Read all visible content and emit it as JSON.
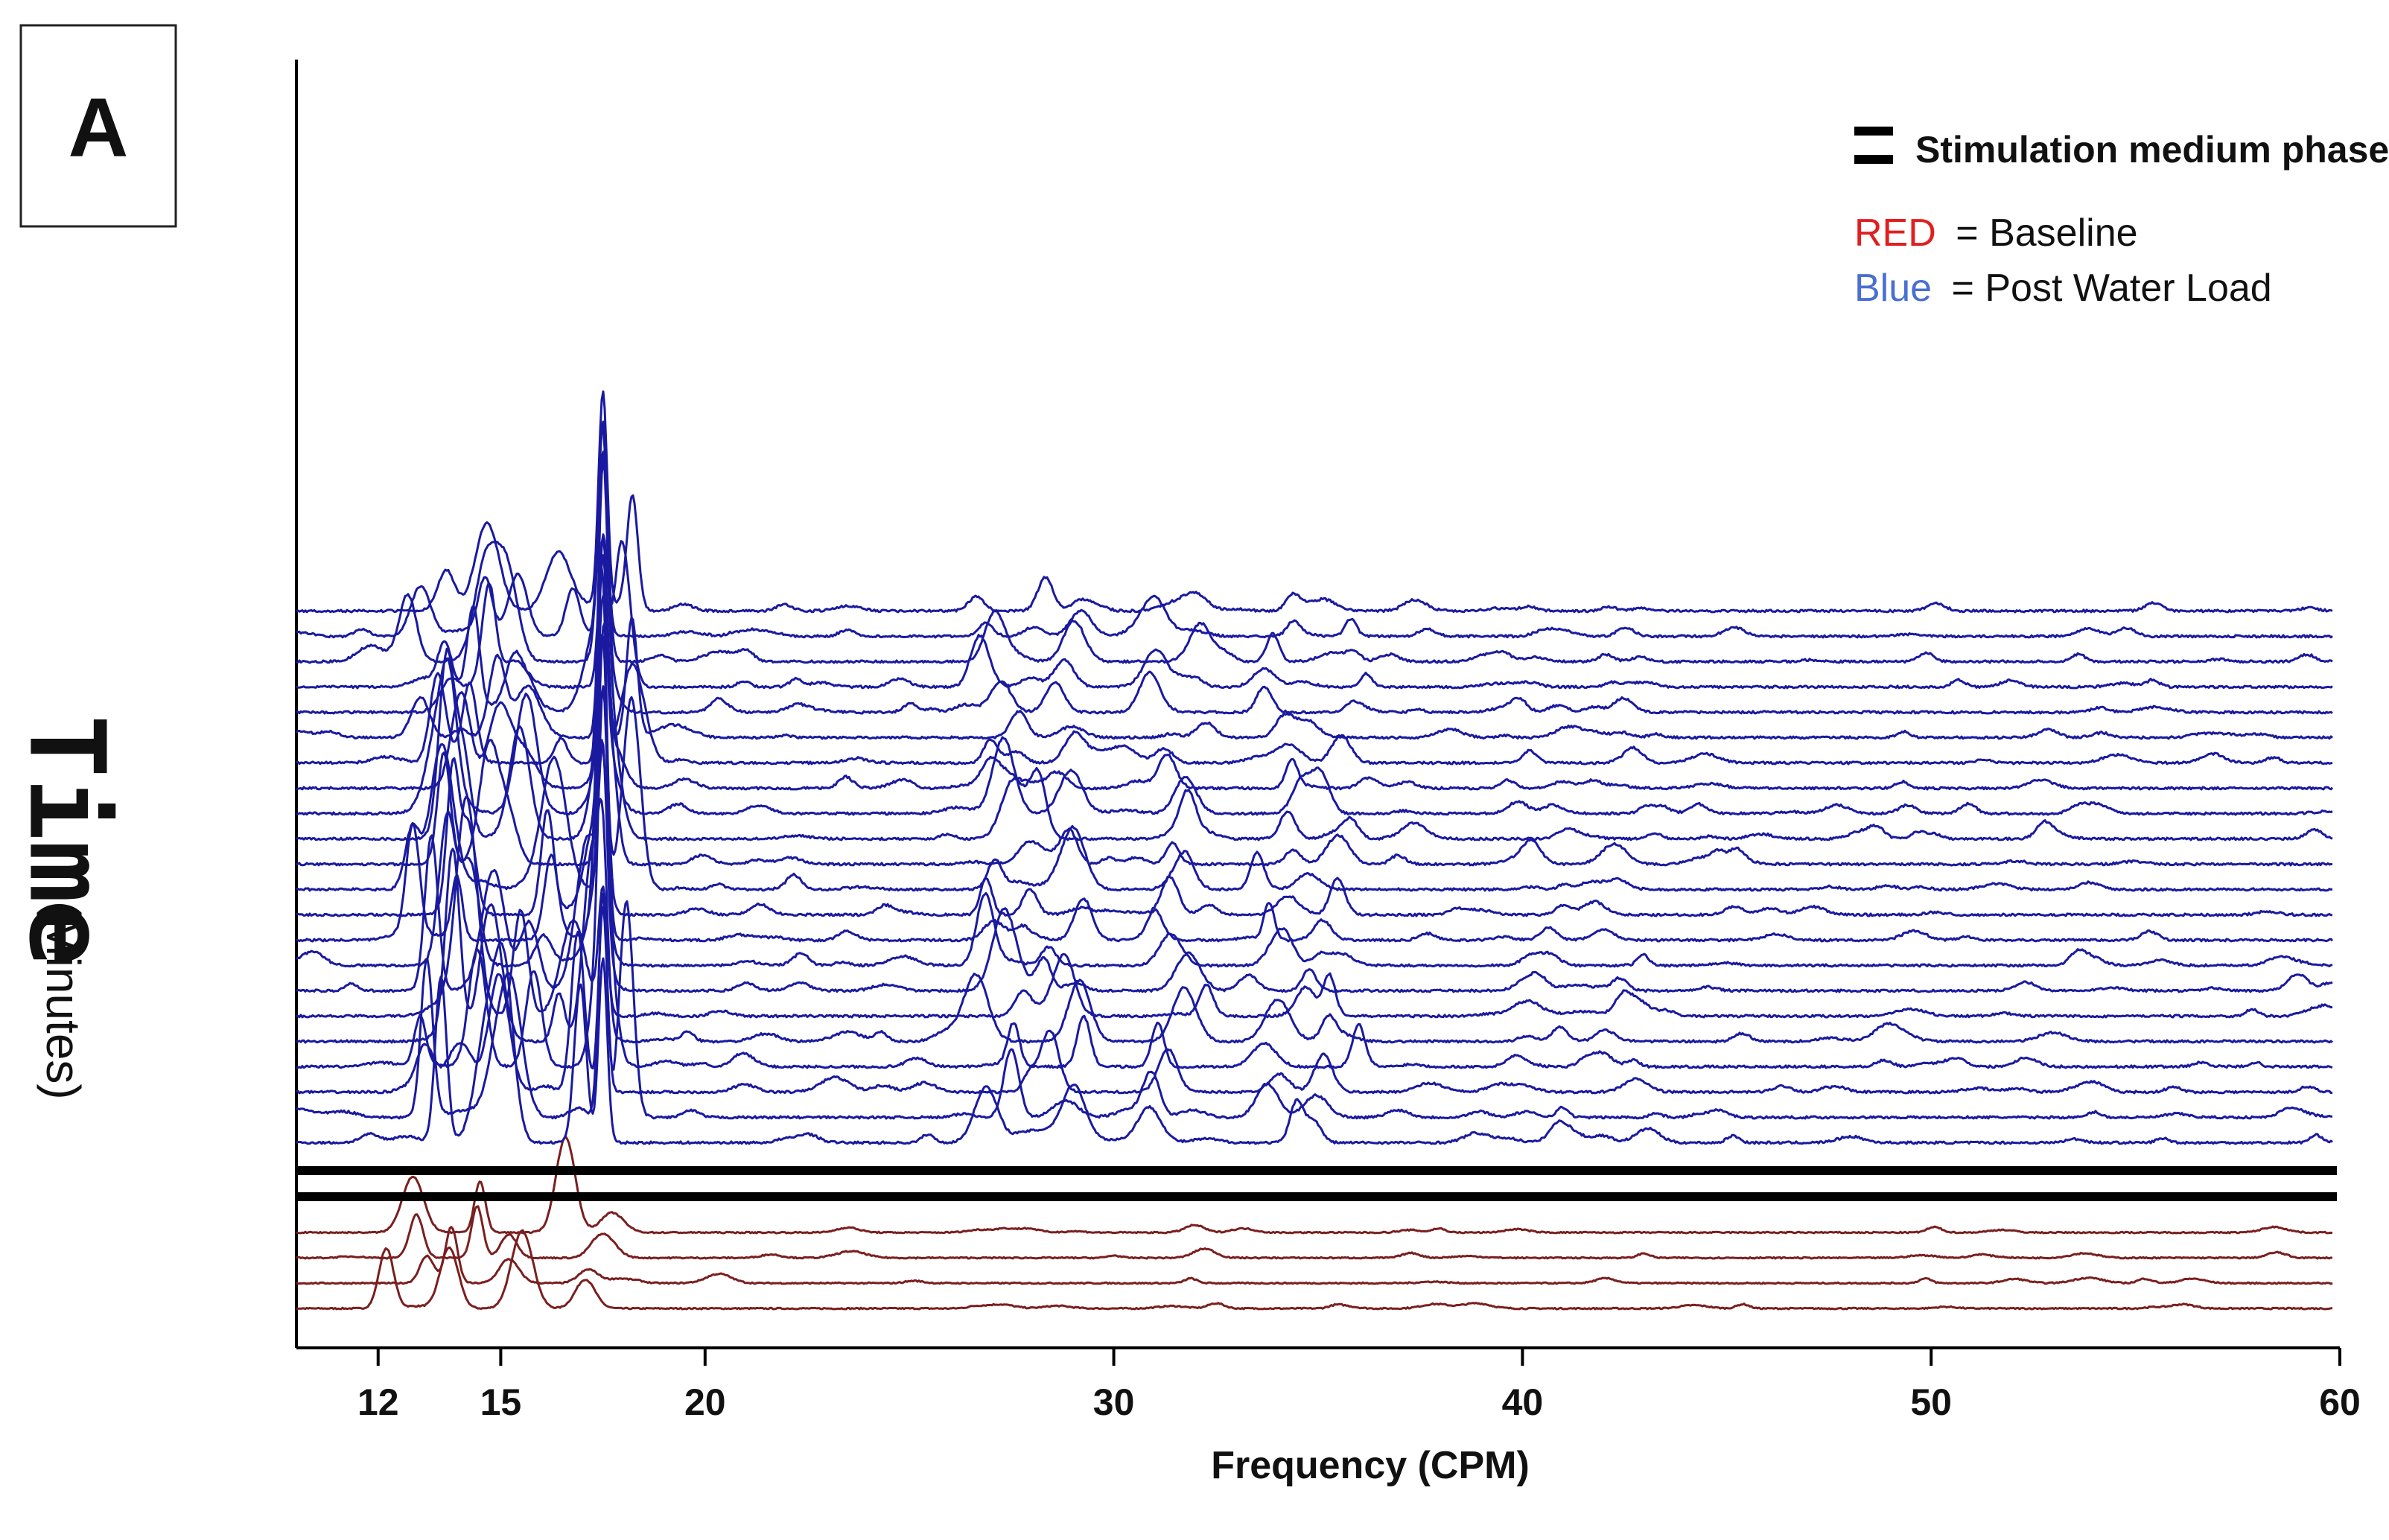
{
  "panel_label": "A",
  "chart_data": {
    "type": "line",
    "xlabel": "Frequency (CPM)",
    "ylabel_main": "Time",
    "ylabel_sub": "(Minutes)",
    "xlim": [
      10,
      60
    ],
    "xticks": [
      12,
      15,
      20,
      30,
      40,
      50,
      60
    ],
    "legend_position": "top-right",
    "legend": {
      "phase_label": "Stimulation medium phase",
      "red_word": "RED",
      "red_rest": "= Baseline",
      "blue_word": "Blue",
      "blue_rest": "= Post Water Load"
    },
    "colors": {
      "baseline": "#7a1f1f",
      "post_water_load": "#1a1aa0",
      "phase": "#000000",
      "red_word": "#e02020",
      "blue_word": "#4a6fd0"
    },
    "baseline_traces": 4,
    "post_water_load_traces": 22,
    "stimulation_lines": 2,
    "dominant_peaks_post_water_load": [
      {
        "freq": 13.5,
        "amp": 0.9
      },
      {
        "freq": 14.3,
        "amp": 0.75
      },
      {
        "freq": 15.7,
        "amp": 0.6
      },
      {
        "freq": 17.5,
        "amp": 1.0
      },
      {
        "freq": 27.2,
        "amp": 0.35
      },
      {
        "freq": 28.7,
        "amp": 0.3
      },
      {
        "freq": 31.5,
        "amp": 0.25
      },
      {
        "freq": 34.0,
        "amp": 0.2
      },
      {
        "freq": 35.5,
        "amp": 0.2
      },
      {
        "freq": 40.5,
        "amp": 0.08
      },
      {
        "freq": 42.5,
        "amp": 0.08
      }
    ],
    "dominant_peaks_baseline": [
      {
        "freq": 13.0,
        "amp": 0.5
      },
      {
        "freq": 14.2,
        "amp": 0.6
      },
      {
        "freq": 15.8,
        "amp": 0.75
      },
      {
        "freq": 17.0,
        "amp": 0.3
      },
      {
        "freq": 32.0,
        "amp": 0.1
      }
    ]
  }
}
